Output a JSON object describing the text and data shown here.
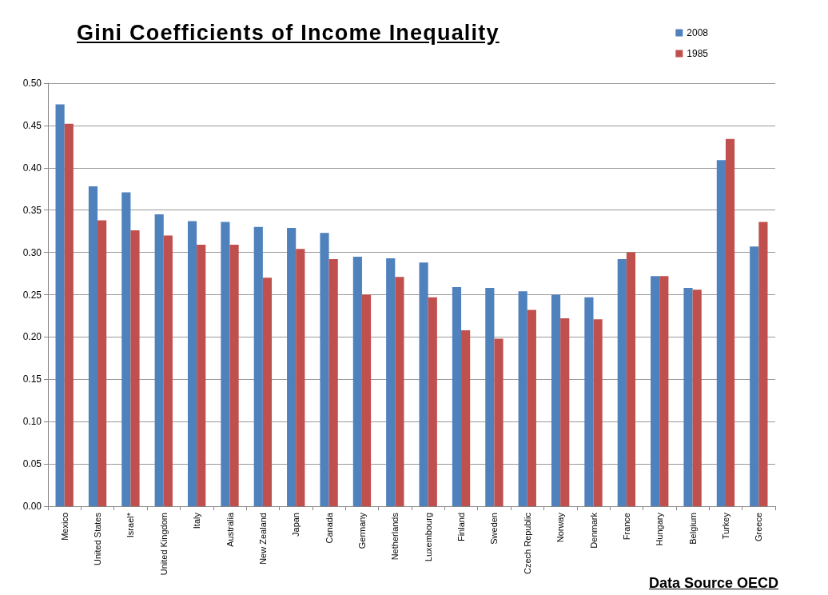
{
  "chart_data": {
    "type": "bar",
    "title": "Gini Coefficients of Income Inequality",
    "annotations": [
      "Data Source OECD"
    ],
    "categories": [
      "Mexico",
      "United States",
      "Israel*",
      "United Kingdom",
      "Italy",
      "Australia",
      "New Zealand",
      "Japan",
      "Canada",
      "Germany",
      "Netherlands",
      "Luxembourg",
      "Finland",
      "Sweden",
      "Czech Republic",
      "Norway",
      "Denmark",
      "France",
      "Hungary",
      "Belgium",
      "Turkey",
      "Greece"
    ],
    "series": [
      {
        "name": "2008",
        "color": "#4f81bd",
        "values": [
          0.475,
          0.378,
          0.371,
          0.345,
          0.337,
          0.336,
          0.33,
          0.329,
          0.323,
          0.295,
          0.293,
          0.288,
          0.259,
          0.258,
          0.254,
          0.25,
          0.247,
          0.292,
          0.272,
          0.258,
          0.409,
          0.307
        ]
      },
      {
        "name": "1985",
        "color": "#c0504d",
        "values": [
          0.452,
          0.338,
          0.326,
          0.32,
          0.309,
          0.309,
          0.27,
          0.304,
          0.292,
          0.25,
          0.271,
          0.247,
          0.208,
          0.198,
          0.232,
          0.222,
          0.221,
          0.3,
          0.272,
          0.256,
          0.434,
          0.336
        ]
      }
    ],
    "ylim": [
      0,
      0.5
    ],
    "yticks": [
      {
        "value": 0,
        "label": "0.00"
      },
      {
        "value": 0.05,
        "label": "0.05"
      },
      {
        "value": 0.1,
        "label": "0.10"
      },
      {
        "value": 0.15,
        "label": "0.15"
      },
      {
        "value": 0.2,
        "label": "0.20"
      },
      {
        "value": 0.25,
        "label": "0.25"
      },
      {
        "value": 0.3,
        "label": "0.30"
      },
      {
        "value": 0.35,
        "label": "0.35"
      },
      {
        "value": 0.4,
        "label": "0.40"
      },
      {
        "value": 0.45,
        "label": "0.45"
      },
      {
        "value": 0.5,
        "label": "0.50"
      }
    ],
    "grid": "y",
    "legend": "top right"
  }
}
